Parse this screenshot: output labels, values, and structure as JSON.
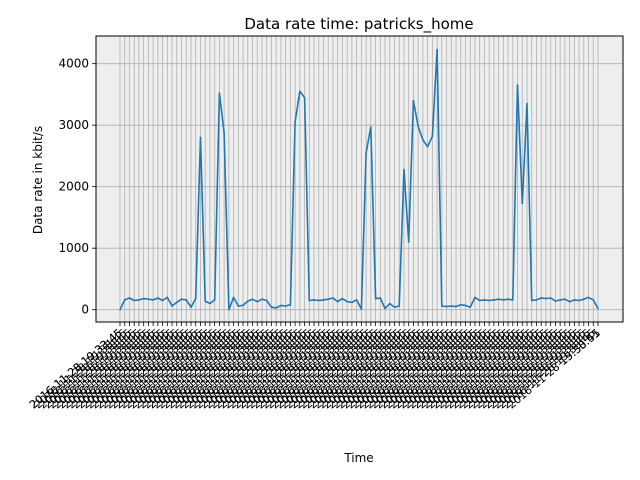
{
  "chart_data": {
    "type": "line",
    "title": "Data rate time: patricks_home",
    "xlabel": "Time",
    "ylabel": "Data rate in kbit/s",
    "ylim": [
      -200,
      4450
    ],
    "yticks": [
      0,
      1000,
      2000,
      3000,
      4000
    ],
    "grid": true,
    "background": "#eeeeee",
    "line_color": "#1f77b4",
    "x_tick_labels_note": "Unreadable overlapping timestamp labels rotated 45 degrees",
    "x_tick_labels_visible": [
      "2016-11-28 19:33:45",
      "15:30:51"
    ],
    "series": [
      {
        "values": [
          0,
          160,
          190,
          150,
          160,
          180,
          170,
          160,
          190,
          150,
          200,
          60,
          120,
          170,
          160,
          40,
          180,
          2800,
          140,
          100,
          160,
          3520,
          2880,
          0,
          200,
          60,
          70,
          140,
          170,
          130,
          170,
          150,
          40,
          30,
          70,
          60,
          80,
          3050,
          3550,
          3450,
          150,
          160,
          150,
          160,
          170,
          190,
          130,
          180,
          130,
          120,
          160,
          10,
          2550,
          2970,
          180,
          190,
          20,
          100,
          40,
          60,
          2280,
          1100,
          3400,
          2980,
          2760,
          2650,
          2820,
          4230,
          60,
          50,
          60,
          50,
          80,
          70,
          40,
          200,
          150,
          160,
          150,
          160,
          170,
          160,
          170,
          160,
          3650,
          1730,
          3350,
          150,
          160,
          190,
          180,
          190,
          140,
          160,
          170,
          130,
          160,
          150,
          170,
          200,
          160,
          20
        ]
      }
    ]
  }
}
